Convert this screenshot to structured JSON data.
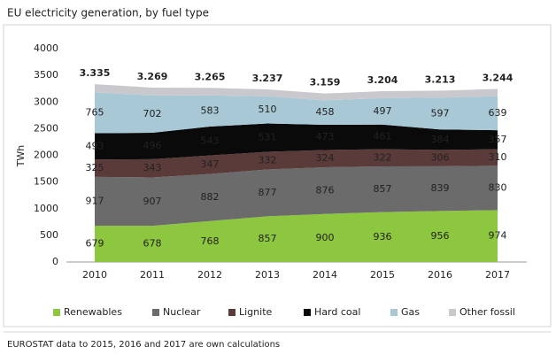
{
  "chart_data": {
    "type": "stacked-area",
    "title": "EU electricity generation, by fuel type",
    "y_label": "TWh",
    "footnote": "EUROSTAT data to 2015, 2016 and 2017 are own calculations",
    "categories": [
      "2010",
      "2011",
      "2012",
      "2013",
      "2014",
      "2015",
      "2016",
      "2017"
    ],
    "series": [
      {
        "name": "Renewables",
        "color": "#8dc63f",
        "values": [
          679,
          678,
          768,
          857,
          900,
          936,
          956,
          974
        ]
      },
      {
        "name": "Nuclear",
        "color": "#6b6b6b",
        "values": [
          917,
          907,
          882,
          877,
          876,
          857,
          839,
          830
        ]
      },
      {
        "name": "Lignite",
        "color": "#5b3a3a",
        "values": [
          325,
          343,
          347,
          332,
          324,
          322,
          306,
          310
        ]
      },
      {
        "name": "Hard coal",
        "color": "#0a0a0a",
        "values": [
          493,
          496,
          543,
          531,
          473,
          461,
          384,
          357
        ]
      },
      {
        "name": "Gas",
        "color": "#a9c8d6",
        "values": [
          765,
          702,
          583,
          510,
          458,
          497,
          597,
          639
        ]
      },
      {
        "name": "Other fossil",
        "color": "#c9c9cd",
        "values": [
          156,
          143,
          142,
          130,
          128,
          131,
          131,
          134
        ],
        "labels": false
      }
    ],
    "totals": {
      "values": [
        3335,
        3269,
        3265,
        3237,
        3159,
        3204,
        3213,
        3244
      ],
      "value_labels": [
        "3.335",
        "3.269",
        "3.265",
        "3.237",
        "3.159",
        "3.204",
        "3.213",
        "3.244"
      ]
    },
    "ylim": [
      0,
      4000
    ],
    "yticks": [
      0,
      500,
      1000,
      1500,
      2000,
      2500,
      3000,
      3500,
      4000
    ],
    "grid": false,
    "legend": "bottom"
  }
}
